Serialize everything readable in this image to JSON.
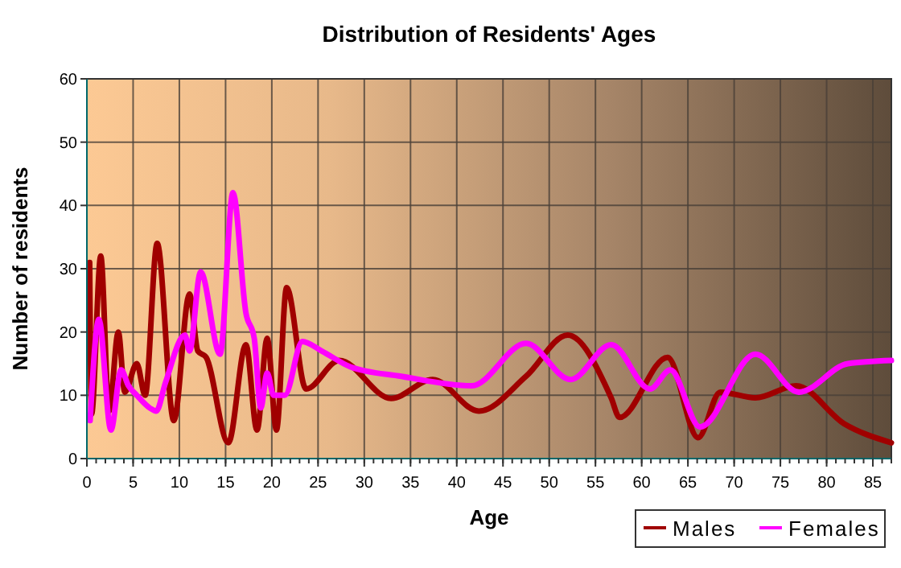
{
  "chart_data": {
    "type": "line",
    "title": "Distribution of Residents' Ages",
    "xlabel": "Age",
    "ylabel": "Number of residents",
    "xlim": [
      0,
      87
    ],
    "xticks": [
      0,
      5,
      10,
      15,
      20,
      25,
      30,
      35,
      40,
      45,
      50,
      55,
      60,
      65,
      70,
      75,
      80,
      85
    ],
    "ylim": [
      0,
      60
    ],
    "yticks": [
      0,
      10,
      20,
      30,
      40,
      50,
      60
    ],
    "grid": true,
    "legend": "bottom right",
    "line_style": "solid",
    "marker": "none",
    "series": [
      {
        "name": "Males",
        "color": "#a00000",
        "x": [
          0.3,
          0.5,
          1.5,
          2.4,
          3.4,
          4.1,
          5.4,
          6.3,
          7.6,
          9.4,
          11.1,
          12,
          12.9,
          15.3,
          17.2,
          18.4,
          19.5,
          20.5,
          21.6,
          23.7,
          27.3,
          32.9,
          37.4,
          42.4,
          47.5,
          52,
          56.7,
          57.6,
          62.8,
          66.1,
          68.5,
          72.3,
          76.7,
          81.9,
          87
        ],
        "values": [
          31,
          7,
          32,
          7.5,
          20,
          10.5,
          15,
          10,
          34,
          6,
          26,
          17,
          16,
          2.5,
          18,
          4.5,
          19,
          4.5,
          27,
          11,
          15.5,
          9.5,
          12.5,
          7.5,
          13,
          19.5,
          9.6,
          6.5,
          16,
          3.3,
          10.5,
          9.6,
          11.5,
          5.5,
          2.5
        ]
      },
      {
        "name": "Females",
        "color": "#ff00ff",
        "x": [
          0.35,
          1.3,
          2.6,
          3.7,
          4.5,
          5.4,
          6.8,
          7.5,
          8.5,
          10.6,
          11.1,
          12.3,
          14.4,
          15.8,
          17.2,
          18.1,
          18.8,
          19.5,
          20.2,
          21.4,
          23.3,
          25.4,
          28.5,
          34,
          41.6,
          47.5,
          52.3,
          56.7,
          60.9,
          63.1,
          66.3,
          72.3,
          77,
          82.3,
          87
        ],
        "values": [
          6,
          22,
          4.5,
          14,
          11.5,
          10,
          8,
          7.5,
          12,
          19.5,
          17,
          29.5,
          16.5,
          42,
          23,
          19,
          8,
          13.5,
          10,
          10,
          18.5,
          17,
          14.5,
          13,
          11.5,
          18.2,
          12.5,
          18,
          11,
          14,
          5,
          16.5,
          10.5,
          15,
          15.5
        ]
      }
    ]
  }
}
